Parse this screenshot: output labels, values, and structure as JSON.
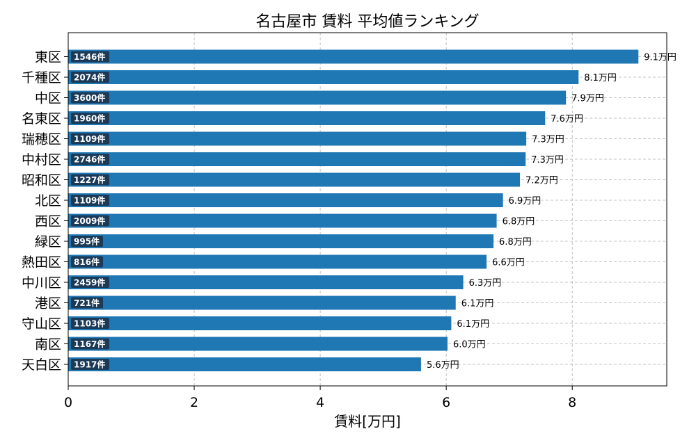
{
  "chart_data": {
    "type": "bar",
    "orientation": "horizontal",
    "title": "名古屋市 賃料 平均値ランキング",
    "xlabel": "賃料[万円]",
    "ylabel": "",
    "xlim": [
      0,
      9.5
    ],
    "xticks": [
      "0",
      "2",
      "4",
      "6",
      "8"
    ],
    "grid": true,
    "colors": {
      "bar": "#1f77b4",
      "count_badge": "#1b3a57",
      "grid": "#b0b0b0"
    },
    "categories": [
      "東区",
      "千種区",
      "中区",
      "名東区",
      "瑞穂区",
      "中村区",
      "昭和区",
      "北区",
      "西区",
      "緑区",
      "熱田区",
      "中川区",
      "港区",
      "守山区",
      "南区",
      "天白区"
    ],
    "values": [
      9.05,
      8.1,
      7.9,
      7.57,
      7.27,
      7.26,
      7.17,
      6.9,
      6.8,
      6.75,
      6.64,
      6.27,
      6.15,
      6.08,
      6.02,
      5.6
    ],
    "value_labels": [
      "9.1万円",
      "8.1万円",
      "7.9万円",
      "7.6万円",
      "7.3万円",
      "7.3万円",
      "7.2万円",
      "6.9万円",
      "6.8万円",
      "6.8万円",
      "6.6万円",
      "6.3万円",
      "6.1万円",
      "6.1万円",
      "6.0万円",
      "5.6万円"
    ],
    "count_labels": [
      "1546件",
      "2074件",
      "3600件",
      "1960件",
      "1109件",
      "2746件",
      "1227件",
      "1109件",
      "2009件",
      "995件",
      "816件",
      "2459件",
      "721件",
      "1103件",
      "1167件",
      "1917件"
    ]
  }
}
